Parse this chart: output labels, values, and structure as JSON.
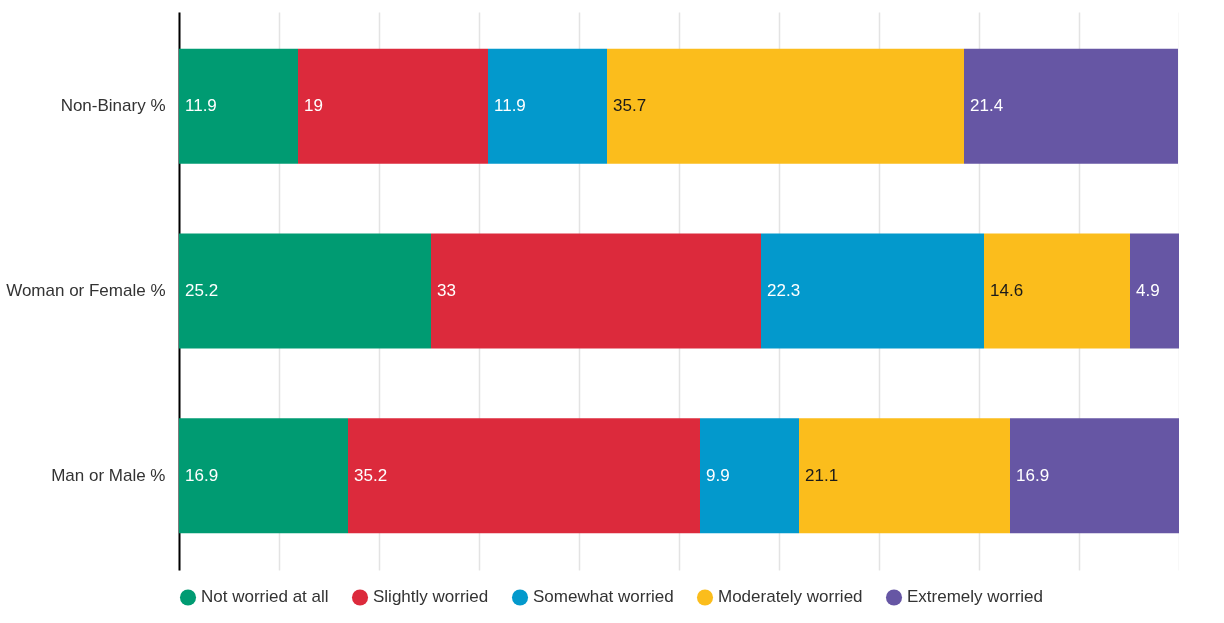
{
  "chart_data": {
    "type": "bar",
    "orientation": "horizontal",
    "stacked": true,
    "data_labels": true,
    "categories": [
      "Non-Binary %",
      "Woman or Female %",
      "Man or Male %"
    ],
    "series": [
      {
        "name": "Not worried at all",
        "color": "#009b72",
        "values": [
          11.9,
          25.2,
          16.9
        ]
      },
      {
        "name": "Slightly worried",
        "color": "#dc2a3c",
        "values": [
          19,
          33,
          35.2
        ]
      },
      {
        "name": "Somewhat worried",
        "color": "#0399cc",
        "values": [
          11.9,
          22.3,
          9.9
        ]
      },
      {
        "name": "Moderately worried",
        "color": "#fbbd1c",
        "values": [
          35.7,
          14.6,
          21.1
        ]
      },
      {
        "name": "Extremely worried",
        "color": "#6656a4",
        "values": [
          21.4,
          4.9,
          16.9
        ]
      }
    ],
    "xlim": [
      0,
      100
    ],
    "xticks": [
      {
        "value": 0,
        "label": null
      },
      {
        "value": 10,
        "label": null
      },
      {
        "value": 20,
        "label": null
      },
      {
        "value": 30,
        "label": null
      },
      {
        "value": 40,
        "label": null
      },
      {
        "value": 50,
        "label": null
      },
      {
        "value": 60,
        "label": null
      },
      {
        "value": 70,
        "label": null
      },
      {
        "value": 80,
        "label": null
      },
      {
        "value": 90,
        "label": null
      },
      {
        "value": 100,
        "label": null
      }
    ],
    "tick_labels": "y",
    "grid": "x",
    "legend": "bottom"
  }
}
